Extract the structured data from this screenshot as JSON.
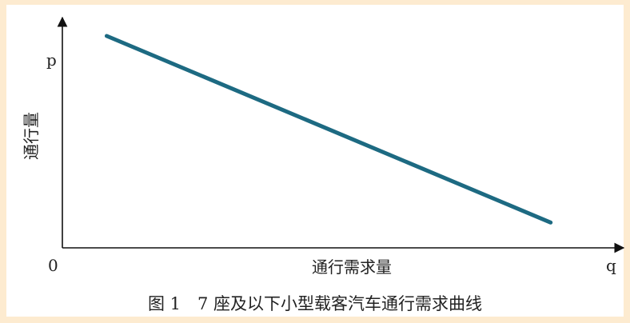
{
  "chart_data": {
    "type": "line",
    "title": "图 1　7 座及以下小型载客汽车通行需求曲线",
    "xlabel": "通行需求量",
    "ylabel": "通行量",
    "origin_label": "0",
    "x_axis_symbol": "q",
    "y_axis_symbol": "p",
    "grid": false,
    "legend": "none",
    "xlim": [
      0,
      1
    ],
    "ylim": [
      0,
      1
    ],
    "series": [
      {
        "x": [
          0.08,
          0.88
        ],
        "y": [
          0.92,
          0.11
        ]
      }
    ],
    "colors": {
      "line": "#1d6a82",
      "axis": "#111111",
      "text": "#222222",
      "background": "#fdebd0",
      "panel": "#ffffff"
    }
  }
}
